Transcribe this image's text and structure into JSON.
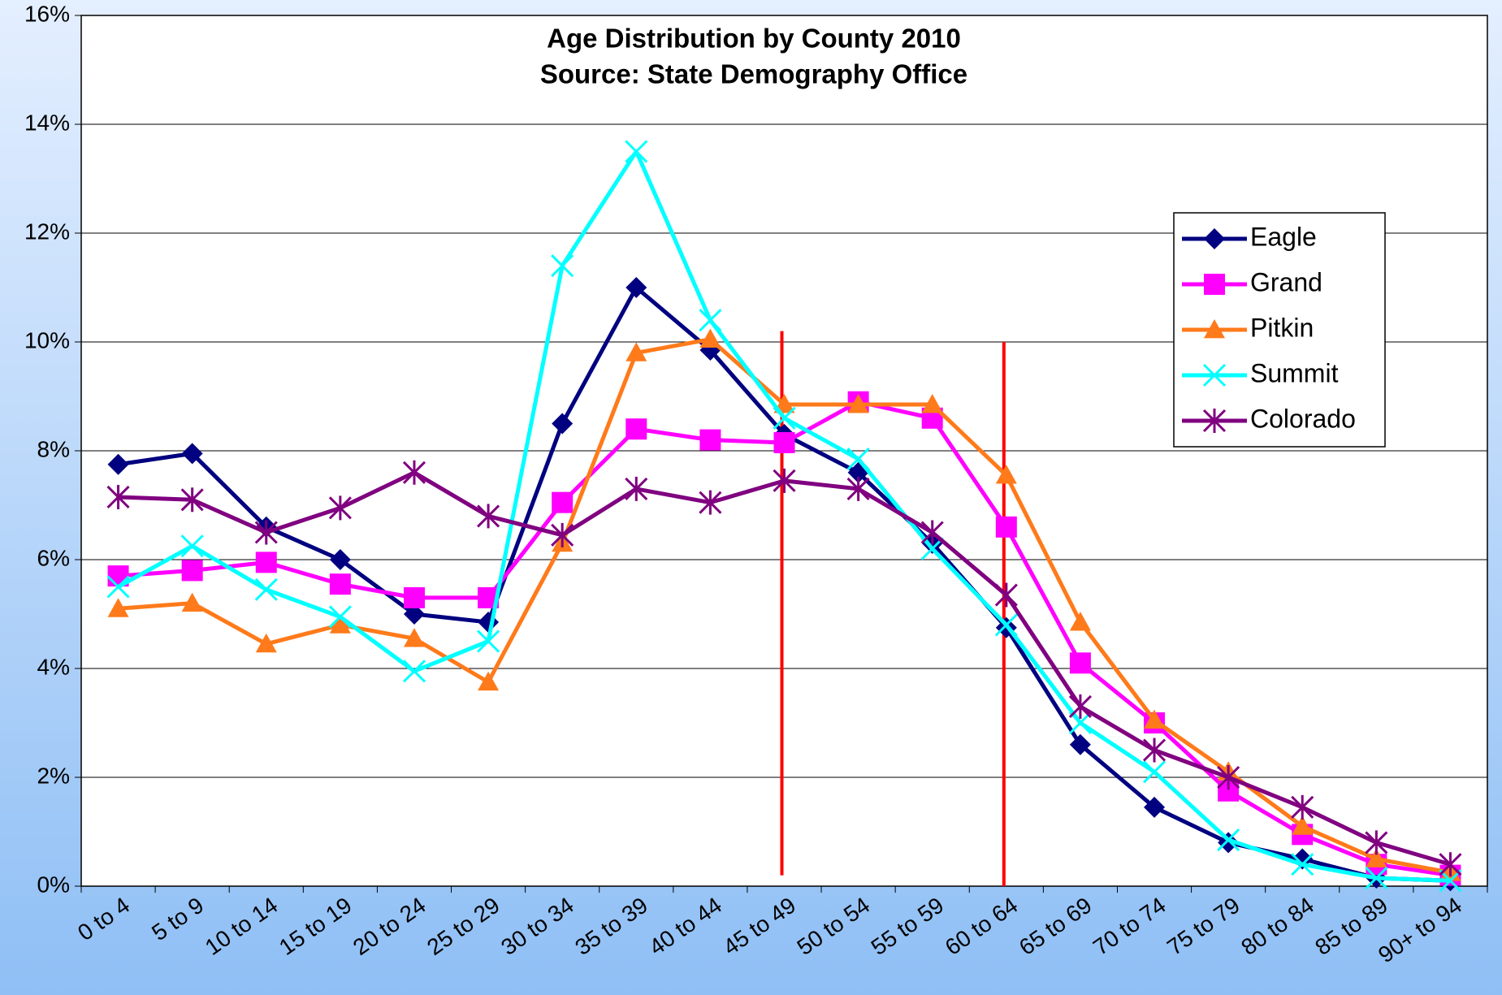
{
  "chart_data": {
    "type": "line",
    "title": "Age Distribution by County 2010",
    "subtitle": "Source: State Demography Office",
    "categories": [
      "0 to 4",
      "5 to 9",
      "10 to 14",
      "15 to 19",
      "20 to 24",
      "25 to 29",
      "30 to 34",
      "35 to 39",
      "40 to 44",
      "45 to 49",
      "50 to 54",
      "55 to 59",
      "60 to 64",
      "65 to 69",
      "70 to 74",
      "75 to 79",
      "80 to 84",
      "85 to 89",
      "90+ to 94"
    ],
    "series": [
      {
        "name": "Eagle",
        "color": "#000080",
        "marker": "diamond",
        "values": [
          7.75,
          7.95,
          6.6,
          6.0,
          5.0,
          4.85,
          8.5,
          11.0,
          9.85,
          8.3,
          7.6,
          6.3,
          4.75,
          2.6,
          1.45,
          0.8,
          0.5,
          0.15,
          0.1
        ]
      },
      {
        "name": "Grand",
        "color": "#ff00ff",
        "marker": "square",
        "values": [
          5.7,
          5.8,
          5.95,
          5.55,
          5.3,
          5.3,
          7.05,
          8.4,
          8.2,
          8.15,
          8.9,
          8.6,
          6.6,
          4.1,
          3.0,
          1.75,
          0.95,
          0.4,
          0.2
        ]
      },
      {
        "name": "Pitkin",
        "color": "#ff7a1a",
        "marker": "triangle",
        "values": [
          5.1,
          5.2,
          4.45,
          4.8,
          4.55,
          3.75,
          6.3,
          9.8,
          10.05,
          8.85,
          8.85,
          8.85,
          7.55,
          4.85,
          3.05,
          2.1,
          1.1,
          0.5,
          0.25
        ]
      },
      {
        "name": "Summit",
        "color": "#00ffff",
        "marker": "x",
        "values": [
          5.5,
          6.25,
          5.45,
          4.95,
          3.95,
          4.5,
          11.4,
          13.5,
          10.4,
          8.6,
          7.85,
          6.2,
          4.8,
          3.0,
          2.1,
          0.85,
          0.4,
          0.15,
          0.1
        ]
      },
      {
        "name": "Colorado",
        "color": "#800080",
        "marker": "star",
        "values": [
          7.15,
          7.1,
          6.5,
          6.95,
          7.6,
          6.8,
          6.45,
          7.3,
          7.05,
          7.45,
          7.3,
          6.5,
          5.35,
          3.3,
          2.5,
          2.0,
          1.45,
          0.8,
          0.4
        ]
      }
    ],
    "ylim": [
      0,
      16
    ],
    "yticks": [
      {
        "value": 0,
        "label": "0%"
      },
      {
        "value": 2,
        "label": "2%"
      },
      {
        "value": 4,
        "label": "4%"
      },
      {
        "value": 6,
        "label": "6%"
      },
      {
        "value": 8,
        "label": "8%"
      },
      {
        "value": 10,
        "label": "10%"
      },
      {
        "value": 12,
        "label": "12%"
      },
      {
        "value": 14,
        "label": "14%"
      },
      {
        "value": 16,
        "label": "16%"
      }
    ],
    "grid": true,
    "legend": "right"
  }
}
